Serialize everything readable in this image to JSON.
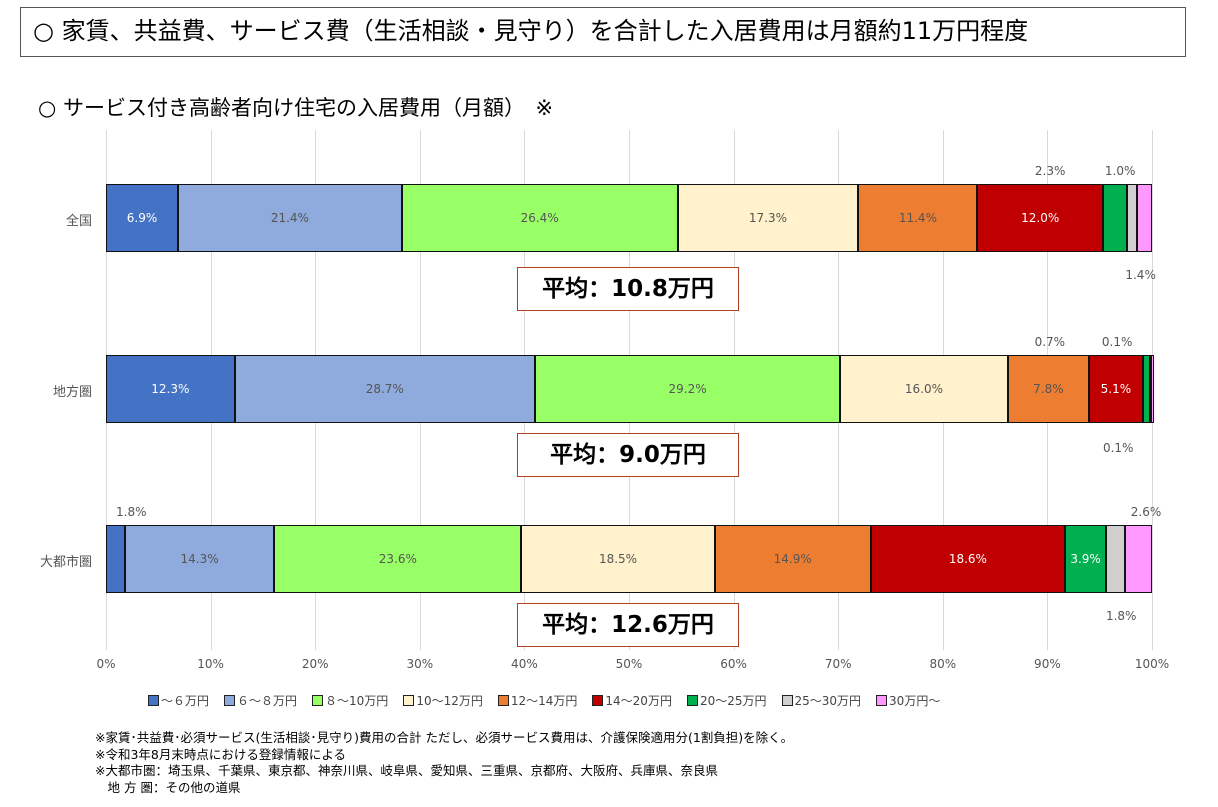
{
  "headline": "○ 家賃、共益費、サービス費（生活相談・見守り）を合計した入居費用は月額約11万円程度",
  "subtitle": "○ サービス付き高齢者向け住宅の入居費用（月額）　※",
  "chart_data": {
    "type": "bar",
    "orientation": "horizontal-stacked-100",
    "categories": [
      "全国",
      "地方圏",
      "大都市圏"
    ],
    "xlim": [
      0,
      100
    ],
    "x_ticks": [
      "0%",
      "10%",
      "20%",
      "30%",
      "40%",
      "50%",
      "60%",
      "70%",
      "80%",
      "90%",
      "100%"
    ],
    "grid": true,
    "legend_position": "bottom",
    "series": [
      {
        "name": "～６万円",
        "color": "#4472c4",
        "values": [
          6.9,
          12.3,
          1.8
        ]
      },
      {
        "name": "６～８万円",
        "color": "#8faadc",
        "values": [
          21.4,
          28.7,
          14.3
        ]
      },
      {
        "name": "８～10万円",
        "color": "#99ff66",
        "values": [
          26.4,
          29.2,
          23.6
        ]
      },
      {
        "name": "10～12万円",
        "color": "#fff2cc",
        "values": [
          17.3,
          16.0,
          18.5
        ]
      },
      {
        "name": "12～14万円",
        "color": "#ed7d31",
        "values": [
          11.4,
          7.8,
          14.9
        ]
      },
      {
        "name": "14～20万円",
        "color": "#c00000",
        "values": [
          12.0,
          5.1,
          18.6
        ]
      },
      {
        "name": "20～25万円",
        "color": "#00b050",
        "values": [
          2.3,
          0.7,
          3.9
        ]
      },
      {
        "name": "25～30万円",
        "color": "#d0cece",
        "values": [
          1.0,
          0.1,
          1.8
        ]
      },
      {
        "name": "30万円～",
        "color": "#ff99ff",
        "values": [
          1.4,
          0.1,
          2.6
        ]
      }
    ],
    "averages": [
      "平均：10.8万円",
      "平均：9.0万円",
      "平均：12.6万円"
    ]
  },
  "notes": [
    "※家賃･共益費･必須サービス(生活相談･見守り)費用の合計  ただし、必須サービス費用は、介護保険適用分(1割負担)を除く。",
    "※令和3年8月末時点における登録情報による",
    "※大都市圏：埼玉県、千葉県、東京都、神奈川県、岐阜県、愛知県、三重県、京都府、大阪府、兵庫県、奈良県",
    "　地 方 圏：その他の道県"
  ]
}
